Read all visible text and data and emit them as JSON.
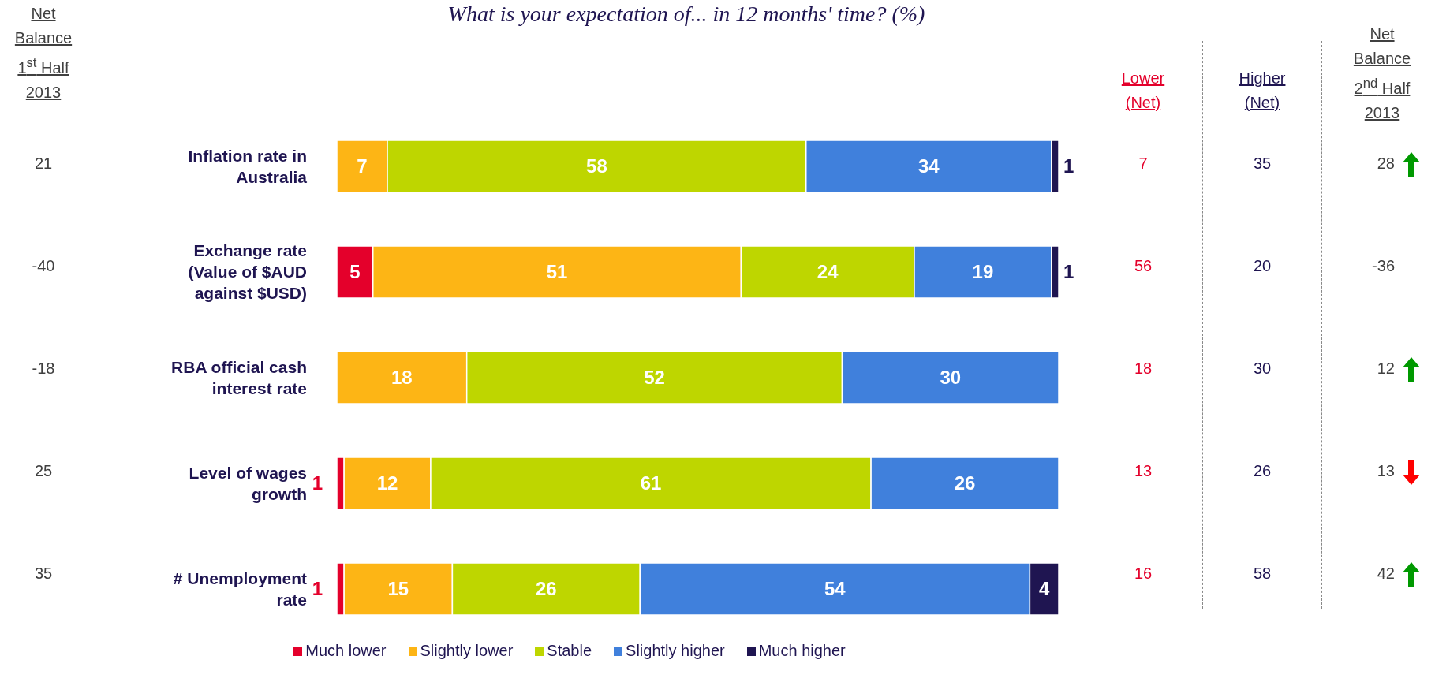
{
  "chart_data": {
    "type": "bar",
    "orientation": "horizontal",
    "stacked": true,
    "data_labels": true,
    "legend": "bottom",
    "title": "What is your expectation of... in 12 months' time? (%)",
    "categories": [
      "Inflation rate in Australia",
      "Exchange rate (Value of $AUD against $USD)",
      "RBA official cash interest rate",
      "Level of wages growth",
      "# Unemployment rate"
    ],
    "series": [
      {
        "name": "Much lower",
        "color": "#e4002b",
        "values": [
          null,
          5,
          null,
          1,
          1
        ]
      },
      {
        "name": "Slightly lower",
        "color": "#fdb515",
        "values": [
          7,
          51,
          18,
          12,
          15
        ]
      },
      {
        "name": "Stable",
        "color": "#bed600",
        "values": [
          58,
          24,
          52,
          61,
          26
        ]
      },
      {
        "name": "Slightly higher",
        "color": "#4080dc",
        "values": [
          34,
          19,
          30,
          26,
          54
        ]
      },
      {
        "name": "Much higher",
        "color": "#1f1551",
        "values": [
          1,
          1,
          null,
          null,
          4
        ]
      }
    ],
    "annotations": [
      "Net Balance 1$^{st}$ Half 2013",
      "Lower (Net)",
      "Higher (Net)",
      "Net Balance 2$^{nd}$ Half 2013",
      "21",
      "-40",
      "-18",
      "25",
      "35",
      "7",
      "56",
      "18",
      "13",
      "16",
      "35",
      "20",
      "30",
      "26",
      "58",
      "28",
      "-36",
      "12",
      "13",
      "42"
    ]
  }
}
